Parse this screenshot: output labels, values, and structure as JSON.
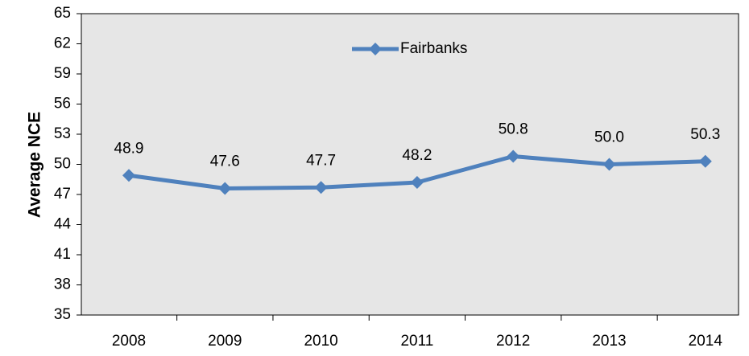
{
  "chart_data": {
    "type": "line",
    "y_label": "Average NCE",
    "categories": [
      "2008",
      "2009",
      "2010",
      "2011",
      "2012",
      "2013",
      "2014"
    ],
    "series": [
      {
        "name": "Fairbanks",
        "color": "#4f81bd",
        "values": [
          48.9,
          47.6,
          47.7,
          48.2,
          50.8,
          50.0,
          50.3
        ],
        "value_labels": [
          "48.9",
          "47.6",
          "47.7",
          "48.2",
          "50.8",
          "50.0",
          "50.3"
        ]
      }
    ],
    "ylim": [
      35,
      65
    ],
    "yticks": [
      35,
      38,
      41,
      44,
      47,
      50,
      53,
      56,
      59,
      62,
      65
    ],
    "grid": false,
    "legend": "top"
  }
}
